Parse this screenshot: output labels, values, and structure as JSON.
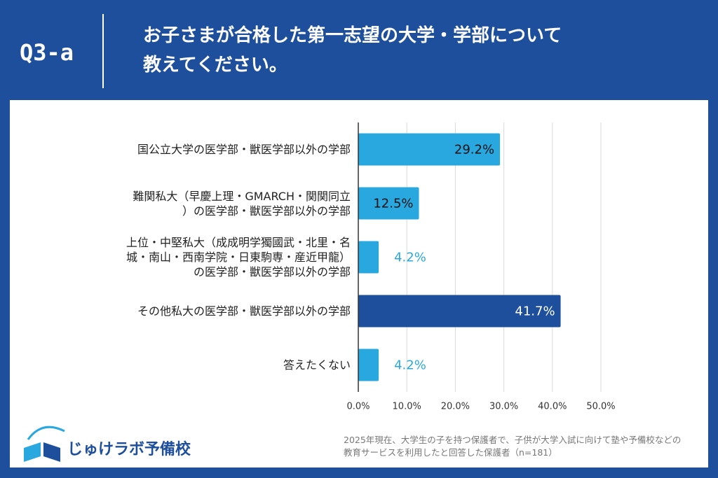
{
  "header": {
    "label": "Q3-a",
    "title": "お子さまが合格した第一志望の大学・学部について\n教えてください。"
  },
  "chart_data": {
    "type": "bar",
    "orientation": "horizontal",
    "categories": [
      "国公立大学の医学部・獣医学部以外の学部",
      "難関私大（早慶上理・GMARCH・関関同立\n）の医学部・獣医学部以外の学部",
      "上位・中堅私大（成成明学獨國武・北里・名\n城・南山・西南学院・日東駒専・産近甲龍）\nの医学部・獣医学部以外の学部",
      "その他私大の医学部・獣医学部以外の学部",
      "答えたくない"
    ],
    "values": [
      29.2,
      12.5,
      4.2,
      41.7,
      4.2
    ],
    "value_labels": [
      "29.2%",
      "12.5%",
      "4.2%",
      "41.7%",
      "4.2%"
    ],
    "colors": [
      "#29a8e0",
      "#29a8e0",
      "#29a8e0",
      "#1e4f9d",
      "#29a8e0"
    ],
    "xlim": [
      0,
      50
    ],
    "xticks": [
      {
        "value": 0,
        "label": "0.0%"
      },
      {
        "value": 10,
        "label": "10.0%"
      },
      {
        "value": 20,
        "label": "20.0%"
      },
      {
        "value": 30,
        "label": "30.0%"
      },
      {
        "value": 40,
        "label": "40.0%"
      },
      {
        "value": 50,
        "label": "50.0%"
      }
    ],
    "grid": true
  },
  "footer": {
    "logo": "じゅけラボ予備校",
    "note": "2025年現在、大学生の子を持つ保護者で、子供が大学入試に向けて塾や予備校などの\n教育サービスを利用したと回答した保護者（n=181）"
  }
}
